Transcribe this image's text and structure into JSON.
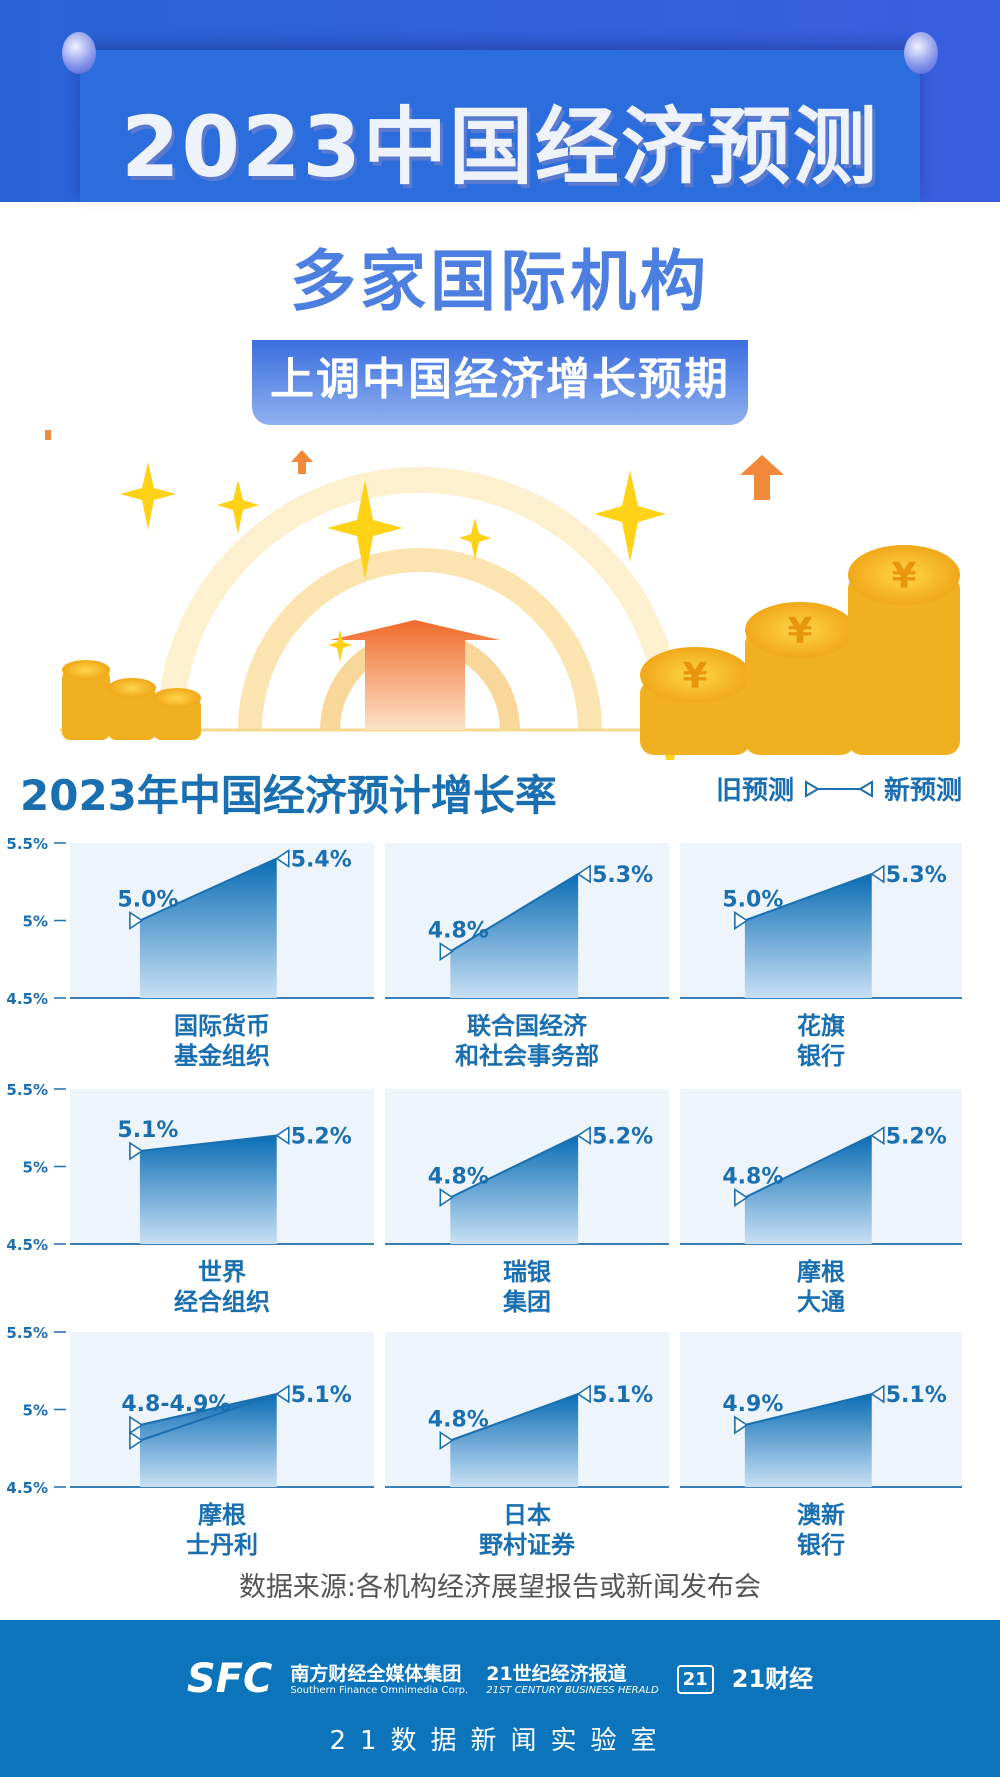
{
  "header": {
    "title": "2023中国经济预测"
  },
  "subtitle": "多家国际机构",
  "banner": "上调中国经济增长预期",
  "legend": {
    "old": "旧预测",
    "new": "新预测"
  },
  "chart_data": {
    "type": "area",
    "title": "2023年中国经济预计增长率",
    "ylim": [
      4.5,
      5.5
    ],
    "yticks": [
      "5.5%",
      "5%",
      "4.5%"
    ],
    "ytick_values": [
      5.5,
      5.0,
      4.5
    ],
    "panels": [
      {
        "name": [
          "国际货币",
          "基金组织"
        ],
        "old": 5.0,
        "new": 5.4,
        "old_label": "5.0%",
        "new_label": "5.4%"
      },
      {
        "name": [
          "联合国经济",
          "和社会事务部"
        ],
        "old": 4.8,
        "new": 5.3,
        "old_label": "4.8%",
        "new_label": "5.3%"
      },
      {
        "name": [
          "花旗",
          "银行"
        ],
        "old": 5.0,
        "new": 5.3,
        "old_label": "5.0%",
        "new_label": "5.3%"
      },
      {
        "name": [
          "世界",
          "经合组织"
        ],
        "old": 5.1,
        "new": 5.2,
        "old_label": "5.1%",
        "new_label": "5.2%"
      },
      {
        "name": [
          "瑞银",
          "集团"
        ],
        "old": 4.8,
        "new": 5.2,
        "old_label": "4.8%",
        "new_label": "5.2%"
      },
      {
        "name": [
          "摩根",
          "大通"
        ],
        "old": 4.8,
        "new": 5.2,
        "old_label": "4.8%",
        "new_label": "5.2%"
      },
      {
        "name": [
          "摩根",
          "士丹利"
        ],
        "old": 4.9,
        "old_low": 4.8,
        "new": 5.1,
        "old_label": "4.8-4.9%",
        "new_label": "5.1%"
      },
      {
        "name": [
          "日本",
          "野村证券"
        ],
        "old": 4.8,
        "new": 5.1,
        "old_label": "4.8%",
        "new_label": "5.1%"
      },
      {
        "name": [
          "澳新",
          "银行"
        ],
        "old": 4.9,
        "new": 5.1,
        "old_label": "4.9%",
        "new_label": "5.1%"
      }
    ]
  },
  "source": "数据来源:各机构经济展望报告或新闻发布会",
  "footer": {
    "sfc": "SFC",
    "sfc_cn": "南方财经全媒体集团",
    "sfc_en": "Southern Finance Omnimedia Corp.",
    "herald_cn": "21世纪经济报道",
    "herald_en": "21ST CENTURY BUSINESS HERALD",
    "cj_badge": "21",
    "cj": "21财经",
    "lab": "21数据新闻实验室"
  },
  "colors": {
    "blue": "#1a6fb0",
    "panel": "#eef4fc",
    "header": "#2b6ddc",
    "footer": "#0b74bb"
  }
}
